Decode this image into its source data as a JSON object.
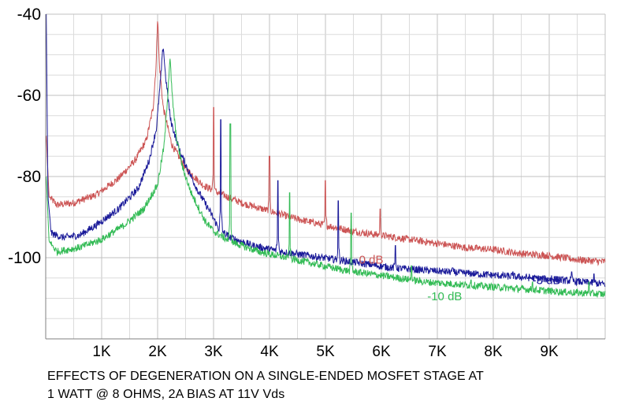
{
  "caption": {
    "line1": "EFFECTS OF DEGENERATION ON A SINGLE-ENDED MOSFET STAGE AT",
    "line2": "1 WATT @ 8 OHMS,  2A BIAS AT 11V Vds"
  },
  "chart_data": {
    "type": "line",
    "title": "",
    "xlabel": "",
    "ylabel": "",
    "xlim": [
      0,
      10000
    ],
    "ylim": [
      -120,
      -40
    ],
    "grid": true,
    "x_ticks": [
      1000,
      2000,
      3000,
      4000,
      5000,
      6000,
      7000,
      8000,
      9000
    ],
    "x_tick_labels": [
      "1K",
      "2K",
      "3K",
      "4K",
      "5K",
      "6K",
      "7K",
      "8K",
      "9K"
    ],
    "y_ticks": [
      -40,
      -60,
      -80,
      -100
    ],
    "y_tick_labels": [
      "-40",
      "-60",
      "-80",
      "-100"
    ],
    "series": [
      {
        "name": "0 dB",
        "color": "#cc5555",
        "label_pos": [
          5600,
          -101.5
        ],
        "floor": [
          [
            10,
            -70
          ],
          [
            60,
            -85
          ],
          [
            200,
            -87
          ],
          [
            500,
            -86.5
          ],
          [
            900,
            -84.5
          ],
          [
            1300,
            -80.5
          ],
          [
            1600,
            -76
          ],
          [
            1800,
            -71
          ],
          [
            1920,
            -63
          ],
          [
            1975,
            -52
          ],
          [
            2000,
            -40
          ],
          [
            2030,
            -52
          ],
          [
            2100,
            -63
          ],
          [
            2250,
            -72
          ],
          [
            2500,
            -78
          ],
          [
            2800,
            -82
          ],
          [
            3000,
            -83.5
          ],
          [
            3500,
            -86.5
          ],
          [
            4000,
            -88.5
          ],
          [
            4500,
            -90.5
          ],
          [
            5000,
            -92
          ],
          [
            5500,
            -93.5
          ],
          [
            6000,
            -94.5
          ],
          [
            6500,
            -95.5
          ],
          [
            7000,
            -96.5
          ],
          [
            7500,
            -97.5
          ],
          [
            8000,
            -98
          ],
          [
            8500,
            -99
          ],
          [
            9000,
            -99.5
          ],
          [
            9500,
            -100.5
          ],
          [
            9990,
            -101
          ]
        ],
        "spurs": [
          [
            3000,
            -63
          ],
          [
            4000,
            -75
          ],
          [
            5000,
            -81
          ],
          [
            5980,
            -88
          ],
          [
            6950,
            -97
          ]
        ]
      },
      {
        "name": "-3 dB",
        "color": "#1a1a99",
        "label_pos": [
          8700,
          -106.5
        ],
        "floor": [
          [
            10,
            -40
          ],
          [
            40,
            -85
          ],
          [
            100,
            -94
          ],
          [
            300,
            -95
          ],
          [
            600,
            -94.5
          ],
          [
            900,
            -92
          ],
          [
            1300,
            -88
          ],
          [
            1650,
            -83
          ],
          [
            1850,
            -76
          ],
          [
            1980,
            -68
          ],
          [
            2060,
            -55
          ],
          [
            2100,
            -47.5
          ],
          [
            2140,
            -55
          ],
          [
            2230,
            -66
          ],
          [
            2400,
            -74
          ],
          [
            2700,
            -83
          ],
          [
            2950,
            -89
          ],
          [
            3100,
            -93
          ],
          [
            3300,
            -95
          ],
          [
            3700,
            -97
          ],
          [
            4200,
            -98.5
          ],
          [
            4700,
            -99.5
          ],
          [
            5200,
            -100.5
          ],
          [
            5700,
            -101.5
          ],
          [
            6200,
            -102.5
          ],
          [
            6700,
            -103
          ],
          [
            7200,
            -103.5
          ],
          [
            7700,
            -104
          ],
          [
            8200,
            -104.5
          ],
          [
            8700,
            -105
          ],
          [
            9200,
            -105.5
          ],
          [
            9600,
            -106
          ],
          [
            9990,
            -106.5
          ]
        ],
        "spurs": [
          [
            3130,
            -66
          ],
          [
            4150,
            -81
          ],
          [
            5230,
            -86
          ],
          [
            6250,
            -97
          ],
          [
            7270,
            -102.5
          ],
          [
            8350,
            -103.5
          ],
          [
            9400,
            -103.5
          ],
          [
            9800,
            -104
          ]
        ]
      },
      {
        "name": "-10 dB",
        "color": "#33bb55",
        "label_pos": [
          6820,
          -110.5
        ],
        "floor": [
          [
            10,
            -80
          ],
          [
            60,
            -96
          ],
          [
            200,
            -98.5
          ],
          [
            600,
            -97.5
          ],
          [
            1000,
            -95.5
          ],
          [
            1400,
            -92
          ],
          [
            1750,
            -88
          ],
          [
            2000,
            -82
          ],
          [
            2120,
            -72
          ],
          [
            2180,
            -60
          ],
          [
            2220,
            -50.5
          ],
          [
            2260,
            -60
          ],
          [
            2330,
            -70
          ],
          [
            2450,
            -78
          ],
          [
            2600,
            -84
          ],
          [
            2850,
            -91
          ],
          [
            3000,
            -93.5
          ],
          [
            3300,
            -96
          ],
          [
            3800,
            -98.5
          ],
          [
            4300,
            -100
          ],
          [
            4800,
            -101.5
          ],
          [
            5300,
            -103
          ],
          [
            5800,
            -104
          ],
          [
            6300,
            -105
          ],
          [
            6800,
            -106
          ],
          [
            7300,
            -106.5
          ],
          [
            7800,
            -107
          ],
          [
            8300,
            -107.5
          ],
          [
            8800,
            -108
          ],
          [
            9300,
            -108.5
          ],
          [
            9990,
            -109
          ]
        ],
        "spurs": [
          [
            3300,
            -67
          ],
          [
            4360,
            -84
          ],
          [
            5460,
            -89
          ],
          [
            6540,
            -102
          ],
          [
            7600,
            -105.5
          ],
          [
            8700,
            -106
          ],
          [
            9710,
            -106
          ]
        ]
      }
    ]
  }
}
